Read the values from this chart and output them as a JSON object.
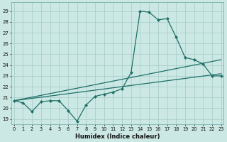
{
  "xlabel": "Humidex (Indice chaleur)",
  "bg_color": "#cce8e4",
  "line_color": "#1e7068",
  "grid_color": "#aad0cc",
  "x_ticks": [
    0,
    1,
    2,
    3,
    4,
    5,
    6,
    7,
    8,
    9,
    10,
    11,
    12,
    13,
    14,
    15,
    16,
    17,
    18,
    19,
    20,
    21,
    22,
    23
  ],
  "y_ticks": [
    19,
    20,
    21,
    22,
    23,
    24,
    25,
    26,
    27,
    28,
    29
  ],
  "xlim": [
    -0.3,
    23.3
  ],
  "ylim": [
    18.5,
    29.8
  ],
  "line1_x": [
    0,
    1,
    2,
    3,
    4,
    5,
    6,
    7,
    8,
    9,
    10,
    11,
    12,
    13,
    14,
    15,
    16,
    17,
    18,
    19,
    20,
    21,
    22,
    23
  ],
  "line1_y": [
    20.7,
    20.5,
    19.7,
    20.6,
    20.7,
    20.7,
    19.8,
    18.8,
    20.3,
    21.1,
    21.3,
    21.5,
    21.8,
    23.3,
    29.0,
    28.9,
    28.2,
    28.3,
    26.6,
    24.7,
    24.5,
    24.1,
    23.0,
    23.0
  ],
  "line2_x": [
    0,
    23
  ],
  "line2_y": [
    20.7,
    23.2
  ],
  "line3_x": [
    0,
    23
  ],
  "line3_y": [
    20.7,
    24.5
  ],
  "marker_x": [
    0,
    1,
    2,
    3,
    4,
    5,
    6,
    7,
    8,
    9,
    10,
    11,
    12,
    13,
    14,
    15,
    16,
    17,
    18,
    19,
    20,
    21,
    22,
    23
  ],
  "marker_y": [
    20.7,
    20.5,
    19.7,
    20.6,
    20.7,
    20.7,
    19.8,
    18.8,
    20.3,
    21.1,
    21.3,
    21.5,
    21.8,
    23.3,
    29.0,
    28.9,
    28.2,
    28.3,
    26.6,
    24.7,
    24.5,
    24.1,
    23.0,
    23.0
  ]
}
